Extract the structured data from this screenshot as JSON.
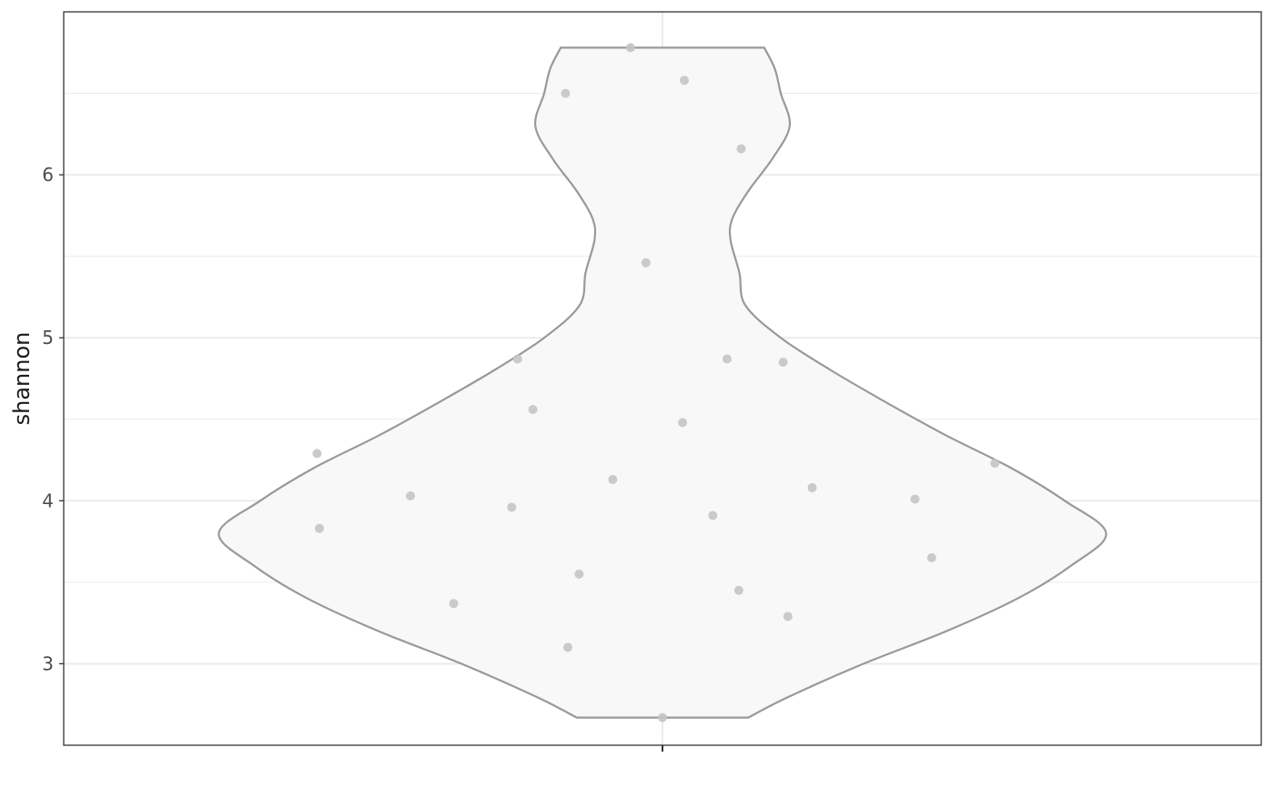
{
  "chart_data": {
    "type": "violin",
    "title": "",
    "xlabel": "",
    "ylabel": "shannon",
    "ylim": [
      2.5,
      7.0
    ],
    "y_ticks": [
      3,
      4,
      5,
      6
    ],
    "y_tick_labels": [
      "3",
      "4",
      "5",
      "6"
    ],
    "grid": true,
    "series": [
      {
        "values": [
          6.78,
          6.58,
          6.5,
          6.16,
          5.46,
          4.87,
          4.87,
          4.85,
          4.56,
          4.48,
          4.29,
          4.23,
          4.13,
          4.08,
          4.03,
          4.01,
          3.96,
          3.91,
          3.83,
          3.65,
          3.55,
          3.45,
          3.37,
          3.29,
          3.1,
          2.67
        ],
        "jitter": [
          -0.054,
          0.037,
          -0.164,
          0.133,
          -0.028,
          -0.245,
          0.109,
          0.204,
          -0.219,
          0.034,
          -0.584,
          0.562,
          -0.084,
          0.253,
          -0.426,
          0.427,
          -0.255,
          0.085,
          -0.58,
          0.455,
          -0.141,
          0.129,
          -0.353,
          0.212,
          -0.16,
          0.0
        ],
        "density_profile": [
          [
            2.67,
            0.145
          ],
          [
            2.8,
            0.215
          ],
          [
            3.0,
            0.34
          ],
          [
            3.2,
            0.48
          ],
          [
            3.4,
            0.6
          ],
          [
            3.6,
            0.69
          ],
          [
            3.8,
            0.75
          ],
          [
            4.0,
            0.68
          ],
          [
            4.2,
            0.59
          ],
          [
            4.4,
            0.48
          ],
          [
            4.6,
            0.38
          ],
          [
            4.8,
            0.285
          ],
          [
            5.0,
            0.2
          ],
          [
            5.2,
            0.14
          ],
          [
            5.4,
            0.13
          ],
          [
            5.6,
            0.115
          ],
          [
            5.73,
            0.118
          ],
          [
            5.9,
            0.145
          ],
          [
            6.1,
            0.186
          ],
          [
            6.3,
            0.215
          ],
          [
            6.5,
            0.2
          ],
          [
            6.65,
            0.19
          ],
          [
            6.78,
            0.172
          ]
        ]
      }
    ],
    "colors": {
      "violin_fill": "#f8f8f8",
      "violin_stroke": "#999999",
      "points": "#c4c4c4",
      "grid": "#ebebeb",
      "panel_border": "#333333"
    }
  }
}
